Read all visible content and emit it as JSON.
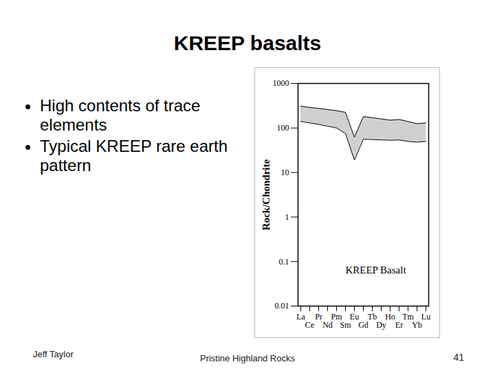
{
  "slide": {
    "title": "KREEP basalts",
    "bullets": [
      "High contents of trace elements",
      "Typical KREEP rare earth pattern"
    ],
    "footer": {
      "author": "Jeff Taylor",
      "subject": "Pristine Highland Rocks",
      "page": "41"
    }
  },
  "chart_data": {
    "type": "area",
    "title": "KREEP Basalt",
    "y_label": "Rock/Chondrite",
    "categories": [
      "La",
      "Ce",
      "Pr",
      "Nd",
      "Pm",
      "Sm",
      "Eu",
      "Gd",
      "Tb",
      "Dy",
      "Ho",
      "Er",
      "Tm",
      "Yb",
      "Lu"
    ],
    "high": [
      310,
      290,
      275,
      260,
      245,
      225,
      62,
      180,
      170,
      160,
      150,
      155,
      140,
      125,
      130
    ],
    "low": [
      140,
      130,
      120,
      110,
      100,
      75,
      19,
      56,
      55,
      54,
      53,
      54,
      50,
      48,
      50
    ],
    "color": "#d0d0d0",
    "log": "y",
    "grid": false,
    "ylim": [
      0.01,
      1000
    ],
    "yticks": [
      0.01,
      0.1,
      1,
      10,
      100,
      1000
    ]
  }
}
